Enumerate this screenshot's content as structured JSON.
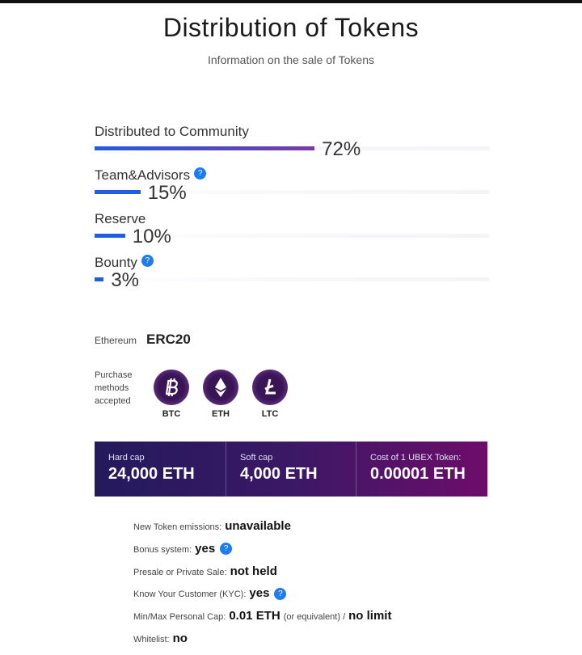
{
  "header": {
    "title": "Distribution of Tokens",
    "subtitle": "Information on the sale of Tokens"
  },
  "chart_data": {
    "type": "hbar",
    "categories": [
      "Distributed to Community",
      "Team&Advisors",
      "Reserve",
      "Bounty"
    ],
    "values": [
      72,
      15,
      10,
      3
    ],
    "value_labels": [
      "72%",
      "15%",
      "10%",
      "3%"
    ],
    "color": "#1f5de3",
    "help": [
      false,
      true,
      false,
      true
    ],
    "help_icon": "?"
  },
  "platform": {
    "label": "Ethereum",
    "value": "ERC20"
  },
  "purchase": {
    "label": "Purchase methods accepted",
    "methods": [
      "BTC",
      "ETH",
      "LTC"
    ]
  },
  "caps": [
    {
      "label": "Hard cap",
      "value": "24,000 ETH"
    },
    {
      "label": "Soft cap",
      "value": "4,000 ETH"
    },
    {
      "label": "Cost of 1 UBEX Token:",
      "value": "0.00001 ETH"
    }
  ],
  "details": [
    {
      "label": "New Token emissions:",
      "value": "unavailable"
    },
    {
      "label": "Bonus system:",
      "value": "yes",
      "help": true
    },
    {
      "label": "Presale or Private Sale:",
      "value": "not held"
    },
    {
      "label": "Know Your Customer (KYC):",
      "value": "yes",
      "help": true
    },
    {
      "label": "Min/Max Personal Cap:",
      "value": "0.01 ETH",
      "note": "(or equivalent) /",
      "value2": "no limit"
    },
    {
      "label": "Whitelist:",
      "value": "no"
    }
  ]
}
